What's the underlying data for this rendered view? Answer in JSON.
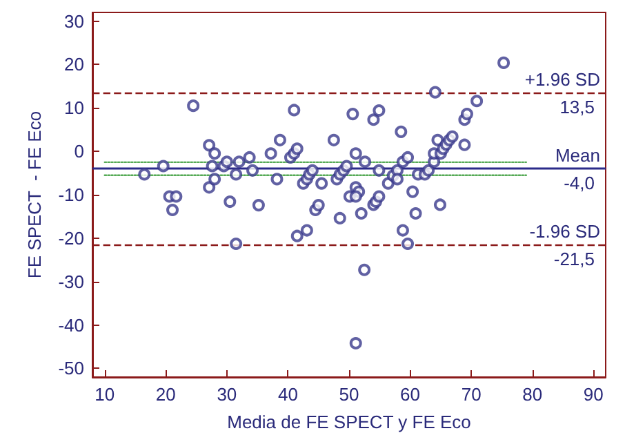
{
  "chart_data": {
    "type": "scatter",
    "xlabel": "Media de FE SPECT y FE Eco",
    "ylabel": "FE SPECT  - FE Eco",
    "xlim": [
      8,
      92
    ],
    "ylim": [
      -52,
      32
    ],
    "xticks": [
      10,
      20,
      30,
      40,
      50,
      60,
      70,
      80,
      90
    ],
    "yticks": [
      -50,
      -40,
      -30,
      -20,
      -10,
      0,
      10,
      20,
      30
    ],
    "grid": false,
    "marker": "circle",
    "series": [
      {
        "color": "#3a3a8c",
        "x": [
          16.5,
          19.6,
          20.6,
          21.7,
          21.1,
          24.5,
          27.1,
          28.0,
          27.6,
          27.1,
          28.0,
          29.5,
          30.0,
          30.5,
          31.5,
          32.0,
          31.5,
          33.7,
          34.2,
          35.2,
          37.2,
          38.2,
          38.7,
          41.0,
          40.4,
          41.0,
          41.5,
          41.5,
          43.1,
          42.5,
          43.1,
          43.5,
          44.0,
          44.5,
          45.0,
          45.5,
          47.5,
          48.0,
          48.5,
          49.1,
          49.6,
          48.5,
          50.1,
          50.6,
          51.1,
          51.1,
          51.6,
          51.1,
          52.6,
          51.1,
          52.0,
          52.5,
          54.0,
          54.9,
          54.9,
          54.0,
          54.4,
          54.9,
          56.4,
          57.2,
          57.9,
          57.9,
          58.5,
          58.8,
          59.6,
          58.8,
          59.6,
          60.4,
          60.9,
          61.3,
          62.4,
          63.0,
          63.9,
          63.9,
          64.1,
          64.5,
          64.9,
          65.0,
          65.4,
          65.9,
          66.4,
          66.9,
          68.9,
          68.9,
          69.3,
          70.9,
          75.3
        ],
        "values": [
          -5.3,
          -3.4,
          -10.4,
          -10.4,
          -13.5,
          10.5,
          1.4,
          -0.5,
          -3.4,
          -8.3,
          -6.4,
          -3.4,
          -2.4,
          -11.6,
          -5.3,
          -2.4,
          -21.3,
          -1.4,
          -4.4,
          -12.4,
          -0.5,
          -6.4,
          2.6,
          9.5,
          -1.4,
          -0.5,
          0.6,
          -19.5,
          -18.2,
          -7.4,
          -6.4,
          -5.3,
          -4.4,
          -13.5,
          -12.4,
          -7.4,
          2.6,
          -6.4,
          -5.3,
          -4.4,
          -3.4,
          -15.4,
          -10.4,
          8.6,
          -0.5,
          -8.3,
          -9.3,
          -10.4,
          -2.4,
          -44.2,
          -14.3,
          -27.3,
          7.3,
          9.4,
          -4.4,
          -12.3,
          -11.6,
          -10.4,
          -7.4,
          -5.6,
          -4.4,
          -6.4,
          4.5,
          -2.4,
          -1.4,
          -18.2,
          -21.3,
          -9.3,
          -14.3,
          -5.3,
          -5.3,
          -4.4,
          -2.4,
          -0.5,
          13.6,
          2.6,
          -12.3,
          -0.5,
          0.6,
          1.6,
          2.6,
          3.4,
          1.5,
          7.3,
          8.6,
          11.6,
          20.4
        ]
      },
      {
        "type": "line",
        "color": "#55aa55",
        "line_style": "dotted",
        "marker": "none",
        "x": [
          10,
          79
        ],
        "values": [
          -2.5,
          -2.5
        ]
      },
      {
        "type": "line",
        "color": "#55aa55",
        "line_style": "dotted",
        "marker": "none",
        "x": [
          10,
          79
        ],
        "values": [
          -5.5,
          -5.5
        ]
      }
    ],
    "ref_lines": [
      {
        "axis": "y",
        "value": 13.5,
        "label": "+1.96 SD",
        "color": "#8b1a1a",
        "line_style": "dashed"
      },
      {
        "axis": "y",
        "value": -4.0,
        "label": "Mean",
        "color": "#2b2b8a",
        "line_style": "solid"
      },
      {
        "axis": "y",
        "value": -21.5,
        "label": "-1.96 SD",
        "color": "#8b1a1a",
        "line_style": "dashed"
      }
    ],
    "annotations": [
      {
        "text": "13,5",
        "y": 13.5
      },
      {
        "text": "-4,0",
        "y": -4.0
      },
      {
        "text": "-21,5",
        "y": -21.5
      }
    ]
  }
}
